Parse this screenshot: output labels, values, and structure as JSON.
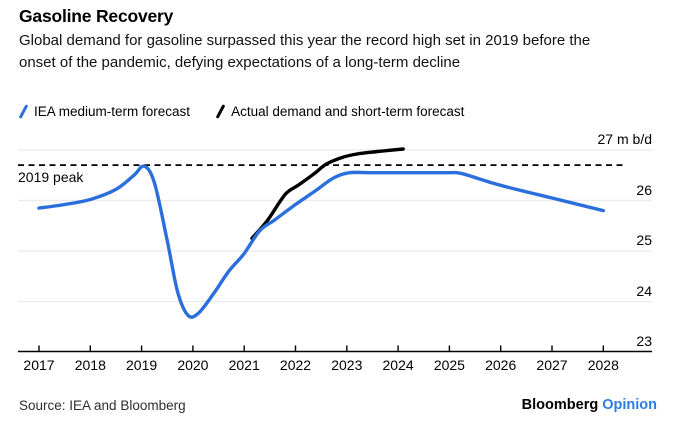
{
  "header": {
    "title": "Gasoline Recovery",
    "subtitle": "Global demand for gasoline surpassed this year the record high set in 2019 before the onset of the pandemic, defying expectations of a long-term decline"
  },
  "legend": [
    {
      "label": "IEA medium-term forecast",
      "color": "#2b6fdd"
    },
    {
      "label": "Actual demand and short-term forecast",
      "color": "#000000"
    }
  ],
  "footer": {
    "source": "Source: IEA and Bloomberg",
    "brand": "Bloomberg",
    "brand_suffix": "Opinion"
  },
  "colors": {
    "accent_blue": "#2b6fdd",
    "opinion_blue": "#2e7ce0",
    "gridline": "#ebebeb",
    "axis": "#000000"
  },
  "chart_data": {
    "type": "line",
    "title": "Gasoline Recovery",
    "unit": "m b/d",
    "x_range": [
      2016.6,
      2029.0
    ],
    "y_range": [
      23,
      27
    ],
    "grid": "horizontal-only",
    "legend_position": "top-left",
    "x_ticks": [
      {
        "label": "2017",
        "value": 2017
      },
      {
        "label": "2018",
        "value": 2018
      },
      {
        "label": "2019",
        "value": 2019
      },
      {
        "label": "2020",
        "value": 2020
      },
      {
        "label": "2021",
        "value": 2021
      },
      {
        "label": "2022",
        "value": 2022
      },
      {
        "label": "2023",
        "value": 2023
      },
      {
        "label": "2024",
        "value": 2024
      },
      {
        "label": "2025",
        "value": 2025
      },
      {
        "label": "2026",
        "value": 2026
      },
      {
        "label": "2027",
        "value": 2027
      },
      {
        "label": "2028",
        "value": 2028
      }
    ],
    "y_ticks": [
      {
        "label": "27 m b/d",
        "value": 27
      },
      {
        "label": "26",
        "value": 26
      },
      {
        "label": "25",
        "value": 25
      },
      {
        "label": "24",
        "value": 24
      },
      {
        "label": "23",
        "value": 23
      }
    ],
    "gridline_values": [
      24,
      25,
      26,
      27
    ],
    "peak_line": {
      "label": "2019 peak",
      "value": 26.7,
      "style": "dashed"
    },
    "series": [
      {
        "name": "Actual demand and short-term forecast",
        "color": "#000000",
        "points": [
          [
            2021.15,
            25.25
          ],
          [
            2021.45,
            25.6
          ],
          [
            2021.8,
            26.12
          ],
          [
            2022.05,
            26.3
          ],
          [
            2022.35,
            26.52
          ],
          [
            2022.6,
            26.72
          ],
          [
            2022.9,
            26.85
          ],
          [
            2023.2,
            26.92
          ],
          [
            2023.6,
            26.97
          ],
          [
            2024.1,
            27.02
          ]
        ]
      },
      {
        "name": "IEA medium-term forecast",
        "color": "#2b6fdd",
        "points": [
          [
            2017.0,
            25.85
          ],
          [
            2017.5,
            25.92
          ],
          [
            2018.0,
            26.02
          ],
          [
            2018.5,
            26.22
          ],
          [
            2018.85,
            26.5
          ],
          [
            2019.05,
            26.68
          ],
          [
            2019.25,
            26.35
          ],
          [
            2019.5,
            25.2
          ],
          [
            2019.7,
            24.2
          ],
          [
            2019.9,
            23.73
          ],
          [
            2020.1,
            23.76
          ],
          [
            2020.4,
            24.15
          ],
          [
            2020.7,
            24.6
          ],
          [
            2021.0,
            24.95
          ],
          [
            2021.3,
            25.4
          ],
          [
            2021.6,
            25.62
          ],
          [
            2022.0,
            25.92
          ],
          [
            2022.4,
            26.2
          ],
          [
            2022.75,
            26.45
          ],
          [
            2023.05,
            26.55
          ],
          [
            2023.5,
            26.55
          ],
          [
            2024.0,
            26.55
          ],
          [
            2024.5,
            26.55
          ],
          [
            2025.0,
            26.55
          ],
          [
            2025.25,
            26.53
          ],
          [
            2026.0,
            26.3
          ],
          [
            2027.0,
            26.05
          ],
          [
            2028.0,
            25.8
          ]
        ]
      }
    ]
  }
}
